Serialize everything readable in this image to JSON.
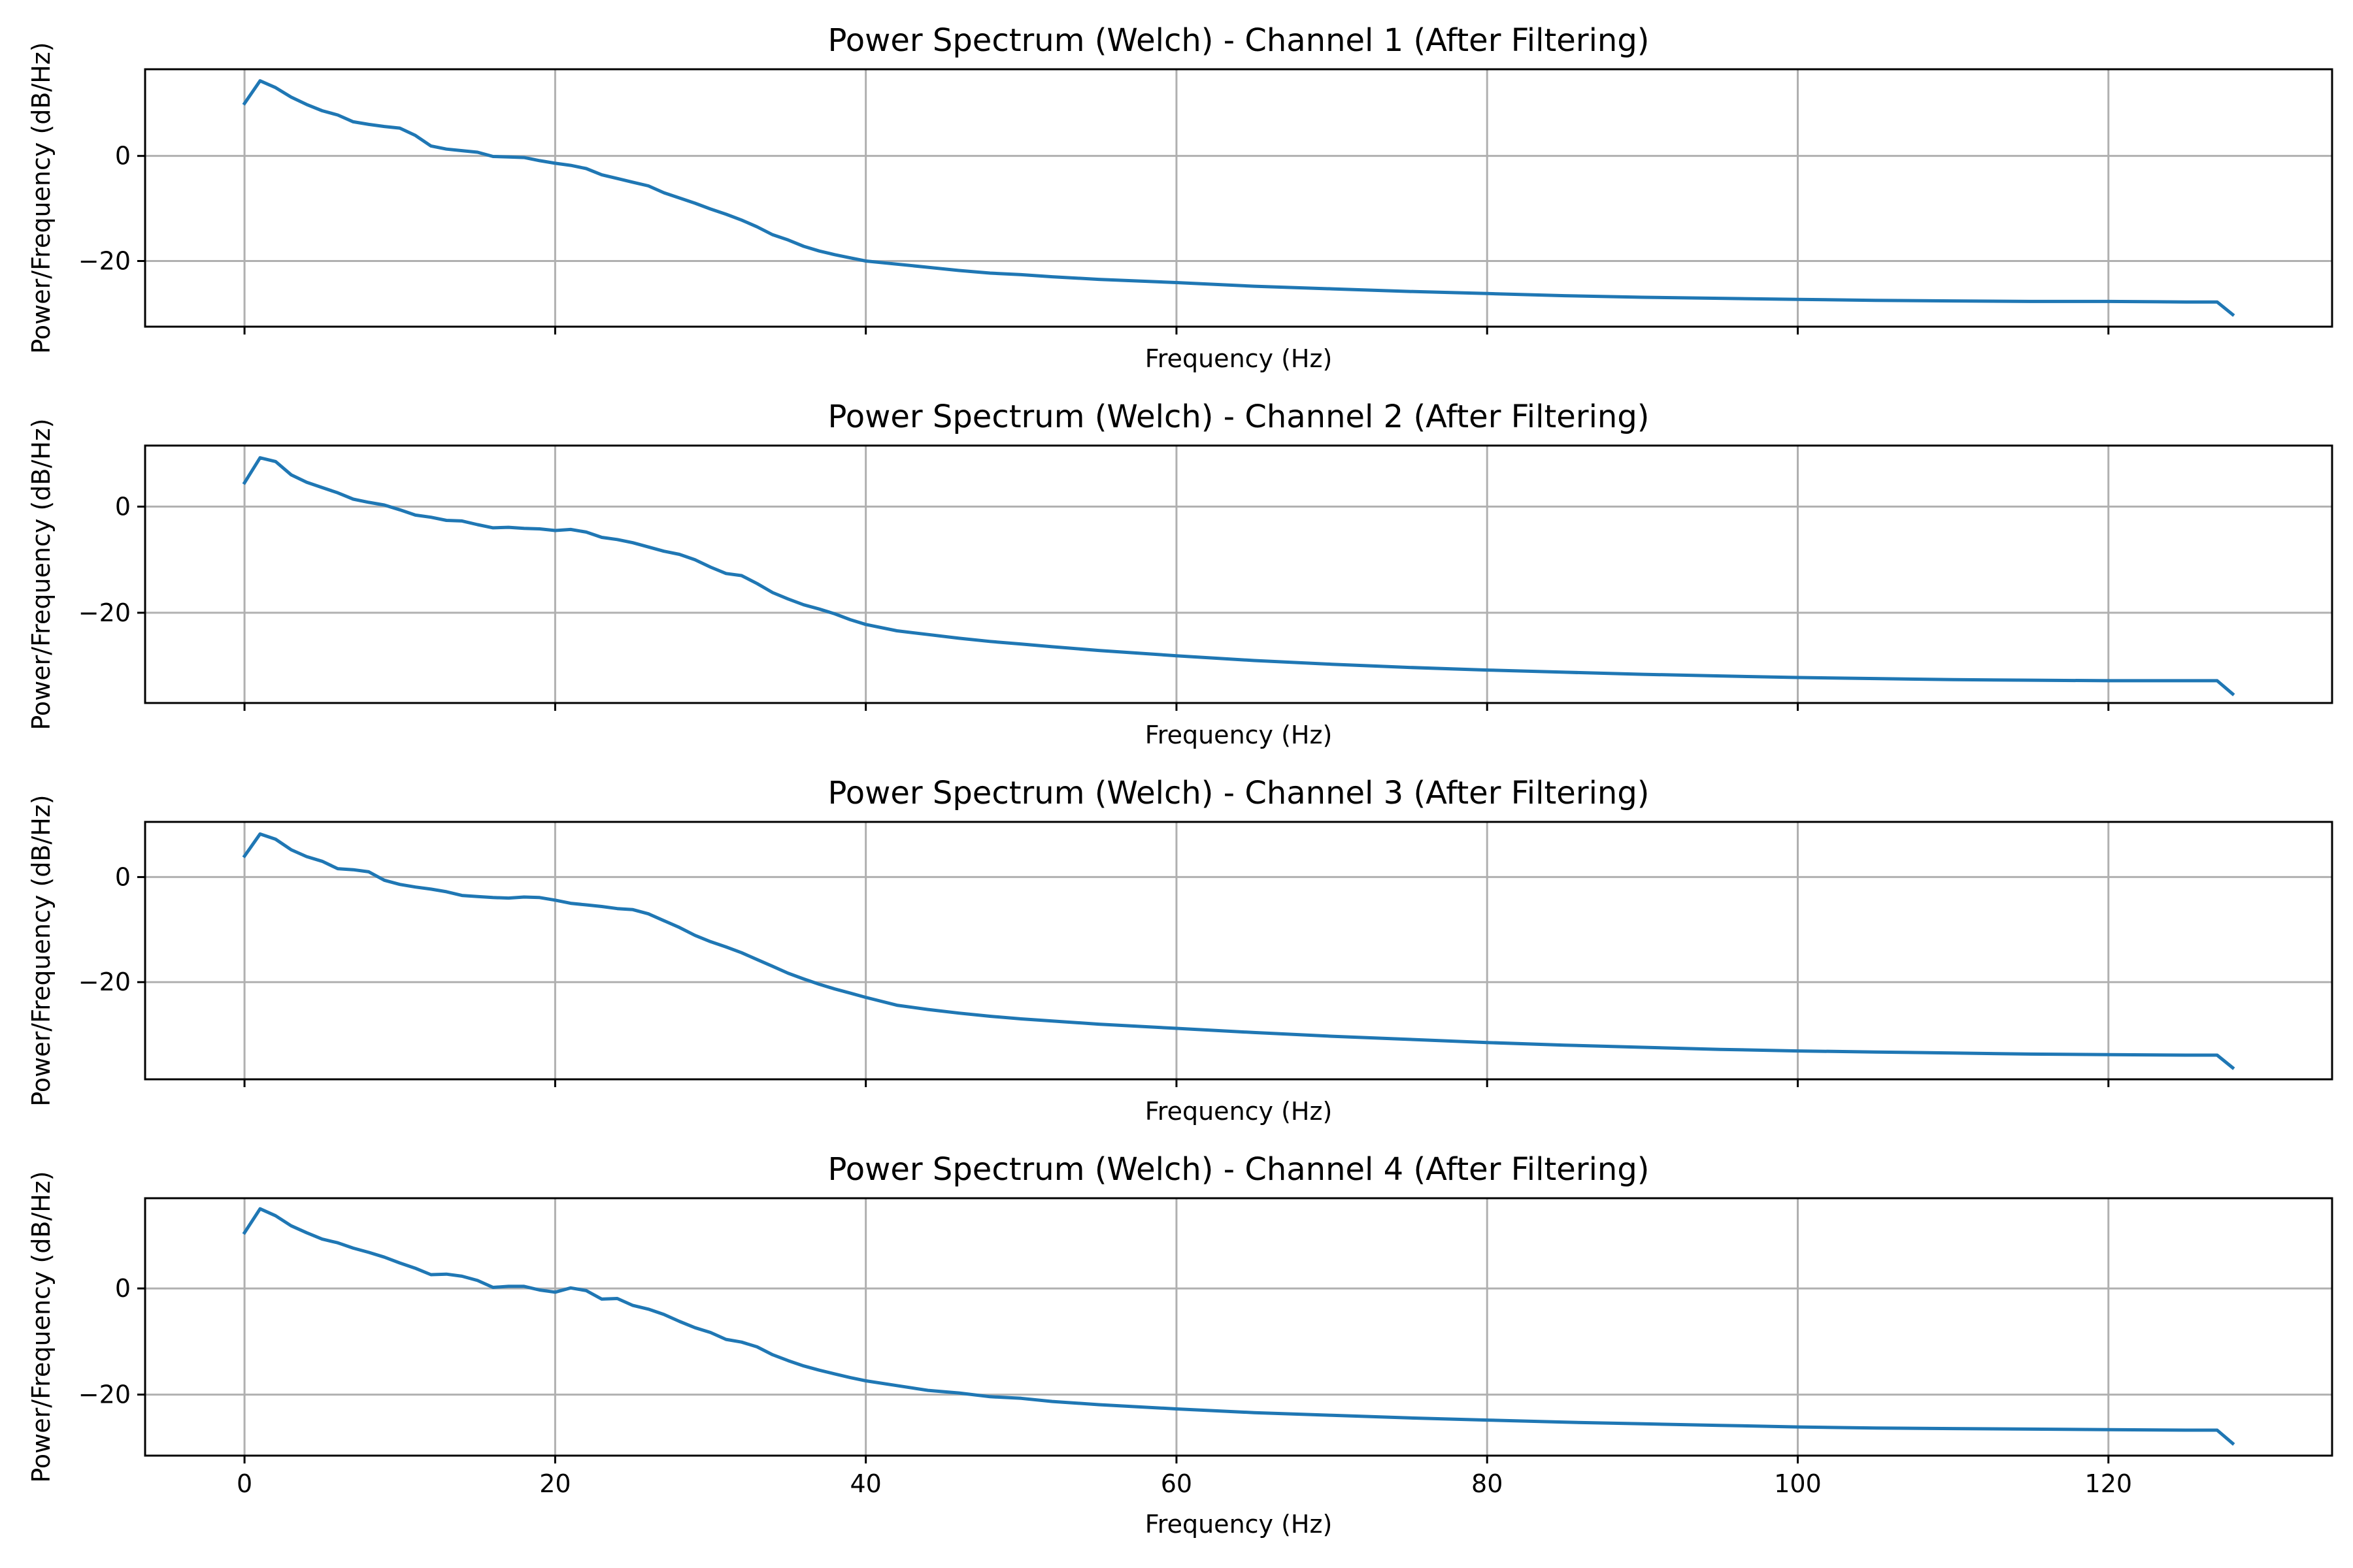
{
  "series_color": "#1f77b4",
  "chart_data": [
    {
      "type": "line",
      "title": "Power Spectrum (Welch) - Channel 1 (After Filtering)",
      "xlabel": "Frequency (Hz)",
      "ylabel": "Power/Frequency (dB/Hz)",
      "xlim": [
        -6.4,
        134.4
      ],
      "ylim": [
        -32.5,
        16.5
      ],
      "xticks": [
        0,
        20,
        40,
        60,
        80,
        100,
        120
      ],
      "yticks": [
        0,
        -20
      ],
      "show_xtick_labels": false,
      "grid": true,
      "x": [
        0,
        1,
        2,
        3,
        4,
        5,
        6,
        7,
        8,
        9,
        10,
        11,
        12,
        13,
        14,
        15,
        16,
        17,
        18,
        19,
        20,
        21,
        22,
        23,
        24,
        25,
        26,
        27,
        28,
        29,
        30,
        31,
        32,
        33,
        34,
        35,
        36,
        37,
        38,
        39,
        40,
        42,
        44,
        46,
        48,
        50,
        52,
        55,
        60,
        65,
        70,
        75,
        80,
        85,
        90,
        95,
        100,
        105,
        110,
        115,
        120,
        125,
        127,
        128
      ],
      "y": [
        10,
        14.3,
        13,
        11.2,
        9.8,
        8.6,
        7.8,
        6.5,
        6,
        5.6,
        5.3,
        3.9,
        1.9,
        1.3,
        1,
        0.7,
        -0.1,
        -0.2,
        -0.3,
        -0.9,
        -1.4,
        -1.8,
        -2.4,
        -3.6,
        -4.3,
        -5,
        -5.7,
        -7,
        -8,
        -9,
        -10.1,
        -11.1,
        -12.2,
        -13.5,
        -15,
        -16,
        -17.2,
        -18.1,
        -18.8,
        -19.4,
        -20,
        -20.6,
        -21.2,
        -21.8,
        -22.3,
        -22.6,
        -23,
        -23.5,
        -24.1,
        -24.8,
        -25.3,
        -25.8,
        -26.2,
        -26.6,
        -26.9,
        -27.1,
        -27.3,
        -27.5,
        -27.6,
        -27.7,
        -27.7,
        -27.8,
        -27.8,
        -30.2
      ]
    },
    {
      "type": "line",
      "title": "Power Spectrum (Welch) - Channel 2 (After Filtering)",
      "xlabel": "Frequency (Hz)",
      "ylabel": "Power/Frequency (dB/Hz)",
      "xlim": [
        -6.4,
        134.4
      ],
      "ylim": [
        -37,
        11.5
      ],
      "xticks": [
        0,
        20,
        40,
        60,
        80,
        100,
        120
      ],
      "yticks": [
        0,
        -20
      ],
      "show_xtick_labels": false,
      "grid": true,
      "x": [
        0,
        1,
        2,
        3,
        4,
        5,
        6,
        7,
        8,
        9,
        10,
        11,
        12,
        13,
        14,
        15,
        16,
        17,
        18,
        19,
        20,
        21,
        22,
        23,
        24,
        25,
        26,
        27,
        28,
        29,
        30,
        31,
        32,
        33,
        34,
        35,
        36,
        37,
        38,
        39,
        40,
        42,
        44,
        46,
        48,
        50,
        52,
        55,
        60,
        65,
        70,
        75,
        80,
        85,
        90,
        95,
        100,
        105,
        110,
        115,
        120,
        125,
        127,
        128
      ],
      "y": [
        4.5,
        9.2,
        8.5,
        6,
        4.6,
        3.6,
        2.6,
        1.4,
        0.8,
        0.3,
        -0.6,
        -1.6,
        -2,
        -2.6,
        -2.7,
        -3.4,
        -4,
        -3.9,
        -4.1,
        -4.2,
        -4.5,
        -4.3,
        -4.8,
        -5.8,
        -6.2,
        -6.8,
        -7.6,
        -8.4,
        -9,
        -10,
        -11.4,
        -12.6,
        -13,
        -14.5,
        -16.2,
        -17.4,
        -18.5,
        -19.3,
        -20.2,
        -21.3,
        -22.2,
        -23.4,
        -24.1,
        -24.8,
        -25.4,
        -25.9,
        -26.4,
        -27.1,
        -28.1,
        -29,
        -29.7,
        -30.3,
        -30.8,
        -31.2,
        -31.6,
        -31.9,
        -32.2,
        -32.4,
        -32.6,
        -32.7,
        -32.8,
        -32.8,
        -32.8,
        -35.3
      ]
    },
    {
      "type": "line",
      "title": "Power Spectrum (Welch) - Channel 3 (After Filtering)",
      "xlabel": "Frequency (Hz)",
      "ylabel": "Power/Frequency (dB/Hz)",
      "xlim": [
        -6.4,
        134.4
      ],
      "ylim": [
        -38.5,
        10.5
      ],
      "xticks": [
        0,
        20,
        40,
        60,
        80,
        100,
        120
      ],
      "yticks": [
        0,
        -20
      ],
      "show_xtick_labels": false,
      "grid": true,
      "x": [
        0,
        1,
        2,
        3,
        4,
        5,
        6,
        7,
        8,
        9,
        10,
        11,
        12,
        13,
        14,
        15,
        16,
        17,
        18,
        19,
        20,
        21,
        22,
        23,
        24,
        25,
        26,
        27,
        28,
        29,
        30,
        31,
        32,
        33,
        34,
        35,
        36,
        37,
        38,
        39,
        40,
        42,
        44,
        46,
        48,
        50,
        52,
        55,
        60,
        65,
        70,
        75,
        80,
        85,
        90,
        95,
        100,
        105,
        110,
        115,
        120,
        125,
        127,
        128
      ],
      "y": [
        4,
        8.2,
        7.2,
        5.2,
        3.9,
        3,
        1.6,
        1.4,
        1,
        -0.6,
        -1.4,
        -1.9,
        -2.3,
        -2.8,
        -3.5,
        -3.7,
        -3.9,
        -4,
        -3.8,
        -3.9,
        -4.4,
        -5,
        -5.3,
        -5.6,
        -6,
        -6.2,
        -7,
        -8.3,
        -9.6,
        -11.1,
        -12.3,
        -13.3,
        -14.4,
        -15.7,
        -17,
        -18.3,
        -19.4,
        -20.4,
        -21.3,
        -22.1,
        -22.9,
        -24.4,
        -25.2,
        -25.9,
        -26.5,
        -27,
        -27.4,
        -28,
        -28.8,
        -29.6,
        -30.3,
        -30.9,
        -31.5,
        -32,
        -32.4,
        -32.8,
        -33.1,
        -33.3,
        -33.5,
        -33.7,
        -33.8,
        -33.9,
        -33.9,
        -36.3
      ]
    },
    {
      "type": "line",
      "title": "Power Spectrum (Welch) - Channel 4 (After Filtering)",
      "xlabel": "Frequency (Hz)",
      "ylabel": "Power/Frequency (dB/Hz)",
      "xlim": [
        -6.4,
        134.4
      ],
      "ylim": [
        -31.5,
        17
      ],
      "xticks": [
        0,
        20,
        40,
        60,
        80,
        100,
        120
      ],
      "yticks": [
        0,
        -20
      ],
      "xtick_labels": [
        "0",
        "20",
        "40",
        "60",
        "80",
        "100",
        "120"
      ],
      "show_xtick_labels": true,
      "grid": true,
      "x": [
        0,
        1,
        2,
        3,
        4,
        5,
        6,
        7,
        8,
        9,
        10,
        11,
        12,
        13,
        14,
        15,
        16,
        17,
        18,
        19,
        20,
        21,
        22,
        23,
        24,
        25,
        26,
        27,
        28,
        29,
        30,
        31,
        32,
        33,
        34,
        35,
        36,
        37,
        38,
        39,
        40,
        42,
        44,
        46,
        48,
        50,
        52,
        55,
        60,
        65,
        70,
        75,
        80,
        85,
        90,
        95,
        100,
        105,
        110,
        115,
        120,
        125,
        127,
        128
      ],
      "y": [
        10.5,
        15,
        13.7,
        11.8,
        10.5,
        9.3,
        8.6,
        7.6,
        6.8,
        5.9,
        4.8,
        3.8,
        2.6,
        2.7,
        2.3,
        1.5,
        0.2,
        0.4,
        0.4,
        -0.3,
        -0.7,
        0.1,
        -0.4,
        -2,
        -1.9,
        -3.2,
        -3.9,
        -4.9,
        -6.2,
        -7.4,
        -8.3,
        -9.6,
        -10.1,
        -11,
        -12.5,
        -13.6,
        -14.6,
        -15.4,
        -16.1,
        -16.8,
        -17.4,
        -18.3,
        -19.2,
        -19.7,
        -20.4,
        -20.7,
        -21.3,
        -21.9,
        -22.7,
        -23.4,
        -23.9,
        -24.4,
        -24.8,
        -25.2,
        -25.5,
        -25.8,
        -26.1,
        -26.3,
        -26.4,
        -26.5,
        -26.6,
        -26.7,
        -26.7,
        -29.2
      ]
    }
  ]
}
